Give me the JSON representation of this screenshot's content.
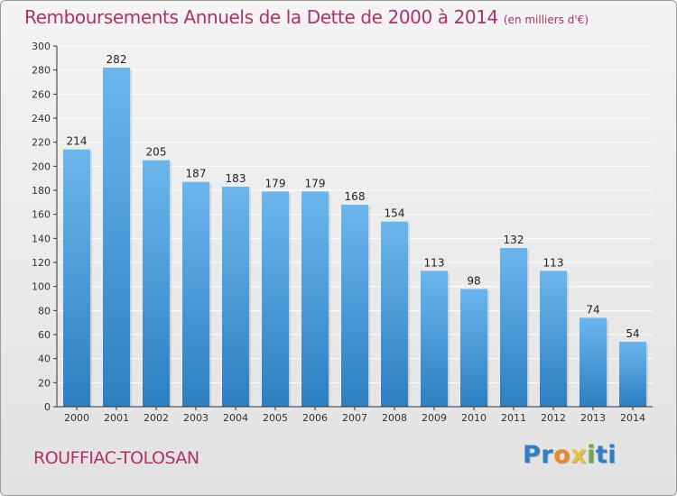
{
  "header": {
    "title": "Remboursements Annuels de la Dette de 2000 à 2014",
    "units_note": "(en milliers d'€)"
  },
  "footer": {
    "place_name": "ROUFFIAC-TOLOSAN",
    "brand": "Proxiti"
  },
  "colors": {
    "title": "#b0306a",
    "bar_top": "#6cb6ee",
    "bar_bottom": "#2d7fc0",
    "grid": "#ffffff",
    "axis": "#333333"
  },
  "chart_data": {
    "type": "bar",
    "title": "Remboursements Annuels de la Dette de 2000 à 2014",
    "subtitle": "(en milliers d'€)",
    "xlabel": "",
    "ylabel": "",
    "categories": [
      "2000",
      "2001",
      "2002",
      "2003",
      "2004",
      "2005",
      "2006",
      "2007",
      "2008",
      "2009",
      "2010",
      "2011",
      "2012",
      "2013",
      "2014"
    ],
    "values": [
      214,
      282,
      205,
      187,
      183,
      179,
      179,
      168,
      154,
      113,
      98,
      132,
      113,
      74,
      54
    ],
    "ylim": [
      0,
      300
    ],
    "yticks": [
      0,
      20,
      40,
      60,
      80,
      100,
      120,
      140,
      160,
      180,
      200,
      220,
      240,
      260,
      280,
      300
    ],
    "grid": true,
    "data_labels": true,
    "legend": "none"
  }
}
